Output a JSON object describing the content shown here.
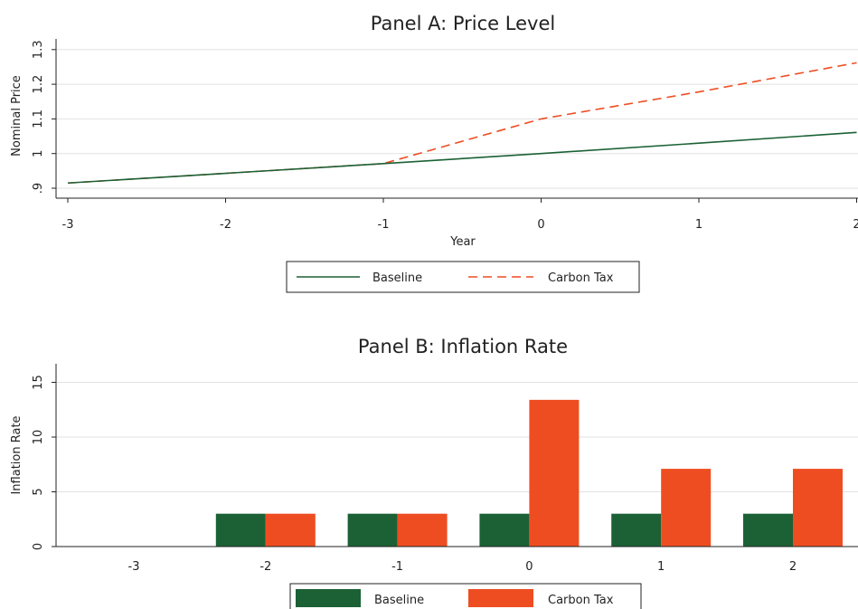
{
  "colors": {
    "baseline": "#1b6135",
    "carbon_tax": "#ee4d22",
    "grid": "#e2e2e2",
    "axis": "#222222"
  },
  "chart_data": [
    {
      "type": "line",
      "title": "Panel A: Price Level",
      "xlabel": "Year",
      "ylabel": "Nominal Price",
      "x": [
        -3,
        -2,
        -1,
        0,
        1,
        2
      ],
      "xticks": [
        "-3",
        "-2",
        "-1",
        "0",
        "1",
        "2"
      ],
      "yticks": [
        ".9",
        "1",
        "1.1",
        "1.2",
        "1.3"
      ],
      "ylim": [
        0.9,
        1.33
      ],
      "grid": true,
      "legend": "bottom",
      "series": [
        {
          "name": "Baseline",
          "style": "solid",
          "values": [
            0.915,
            0.943,
            0.971,
            1.0,
            1.03,
            1.061
          ]
        },
        {
          "name": "Carbon Tax",
          "style": "dashed",
          "values": [
            0.915,
            0.943,
            0.971,
            1.1,
            1.178,
            1.262
          ]
        }
      ]
    },
    {
      "type": "bar",
      "title": "Panel B: Inflation Rate",
      "xlabel": "",
      "ylabel": "Inflation Rate",
      "categories": [
        "-3",
        "-2",
        "-1",
        "0",
        "1",
        "2"
      ],
      "yticks": [
        "0",
        "5",
        "10",
        "15"
      ],
      "ylim": [
        0,
        16.5
      ],
      "grid": true,
      "legend": "bottom",
      "series": [
        {
          "name": "Baseline",
          "values": [
            0,
            3,
            3,
            3,
            3,
            3
          ]
        },
        {
          "name": "Carbon Tax",
          "values": [
            0,
            3,
            3,
            13.4,
            7.1,
            7.1
          ]
        }
      ]
    }
  ]
}
